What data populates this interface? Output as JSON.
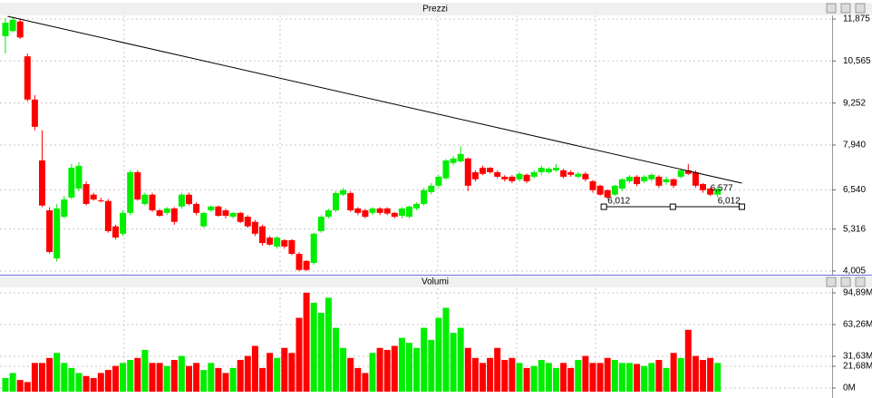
{
  "chart_data": {
    "type": "candlestick",
    "price_title": "Prezzi",
    "volume_title": "Volumi",
    "up_color": "#00ee00",
    "down_color": "#ff0000",
    "line_color": "#000000",
    "grid": true,
    "open": [
      11.34,
      11.5,
      11.8,
      10.71,
      9.36,
      7.46,
      5.9,
      4.4,
      5.7,
      6.3,
      6.58,
      6.72,
      6.39,
      6.21,
      6.19,
      5.4,
      5.17,
      5.82,
      7.09,
      6.1,
      6.39,
      5.9,
      5.82,
      5.96,
      6.02,
      6.39,
      6.1,
      5.4,
      5.9,
      6.02,
      5.9,
      5.7,
      5.82,
      5.7,
      5.54,
      5.4,
      5.05,
      4.77,
      4.97,
      4.97,
      4.54,
      4.32,
      4.26,
      5.25,
      5.7,
      5.9,
      6.39,
      6.44,
      5.96,
      5.9,
      5.82,
      5.96,
      5.96,
      5.82,
      5.73,
      5.7,
      5.96,
      6.1,
      6.47,
      6.67,
      6.9,
      7.38,
      7.43,
      7.52,
      7.09,
      7.23,
      7.23,
      7.09,
      6.95,
      6.95,
      6.87,
      7.01,
      6.95,
      7.09,
      7.09,
      7.15,
      7.15,
      7.09,
      6.95,
      7.04,
      6.81,
      6.67,
      6.53,
      6.39,
      6.58,
      6.81,
      6.95,
      6.81,
      6.87,
      6.95,
      6.78,
      6.87,
      6.95,
      7.15,
      7.09,
      6.72,
      6.58,
      6.39
    ],
    "high": [
      11.9,
      11.95,
      11.9,
      10.8,
      9.5,
      8.4,
      6.0,
      6.1,
      6.35,
      7.35,
      7.4,
      6.8,
      6.45,
      6.3,
      6.25,
      5.45,
      5.9,
      7.15,
      7.15,
      6.45,
      6.45,
      5.95,
      6.0,
      6.0,
      6.45,
      6.45,
      6.15,
      5.85,
      6.05,
      6.05,
      5.95,
      5.85,
      5.85,
      5.75,
      5.6,
      5.45,
      5.1,
      5.1,
      5.0,
      5.0,
      4.6,
      4.35,
      5.2,
      5.75,
      5.95,
      6.5,
      6.6,
      6.5,
      6.0,
      5.95,
      6.0,
      6.0,
      6.0,
      5.85,
      6.0,
      6.05,
      6.15,
      6.6,
      6.75,
      7.0,
      7.5,
      7.6,
      7.9,
      7.55,
      7.15,
      7.3,
      7.25,
      7.15,
      7.0,
      7.0,
      7.1,
      7.05,
      7.15,
      7.3,
      7.25,
      7.35,
      7.2,
      7.15,
      7.1,
      7.1,
      6.85,
      6.7,
      6.55,
      6.7,
      6.9,
      7.0,
      7.0,
      7.0,
      7.05,
      7.0,
      6.95,
      6.9,
      7.2,
      7.35,
      7.15,
      6.75,
      6.6,
      6.65
    ],
    "low": [
      10.8,
      11.45,
      11.25,
      9.3,
      8.4,
      6.0,
      4.55,
      4.3,
      5.65,
      6.25,
      6.5,
      6.05,
      6.2,
      6.15,
      5.2,
      5.0,
      5.1,
      5.75,
      6.2,
      6.05,
      5.85,
      5.7,
      5.75,
      5.45,
      5.95,
      6.05,
      5.75,
      5.35,
      5.85,
      5.7,
      5.65,
      5.65,
      5.5,
      5.35,
      5.1,
      4.8,
      4.8,
      4.7,
      4.7,
      4.5,
      4.0,
      4.0,
      4.2,
      5.2,
      5.65,
      5.85,
      6.35,
      5.85,
      5.75,
      5.65,
      5.75,
      5.75,
      5.75,
      5.65,
      5.65,
      5.65,
      5.9,
      6.05,
      6.4,
      6.6,
      6.85,
      7.3,
      7.4,
      6.5,
      6.8,
      7.0,
      7.05,
      6.9,
      6.8,
      6.75,
      6.8,
      6.75,
      6.9,
      7.0,
      7.05,
      7.1,
      6.9,
      6.95,
      6.9,
      6.8,
      6.45,
      6.35,
      6.25,
      6.35,
      6.5,
      6.75,
      6.65,
      6.75,
      6.8,
      6.6,
      6.7,
      6.6,
      6.9,
      7.0,
      6.6,
      6.45,
      6.35,
      6.3
    ],
    "close": [
      11.76,
      11.85,
      11.3,
      9.36,
      8.51,
      6.05,
      4.6,
      5.96,
      6.24,
      7.23,
      7.29,
      6.1,
      6.24,
      6.19,
      5.25,
      5.05,
      5.82,
      7.09,
      6.24,
      6.39,
      5.9,
      5.73,
      5.96,
      5.54,
      6.39,
      6.1,
      5.82,
      5.82,
      6.02,
      5.73,
      5.73,
      5.82,
      5.54,
      5.4,
      5.17,
      4.88,
      4.83,
      5.05,
      4.77,
      4.54,
      4.04,
      4.04,
      5.17,
      5.7,
      5.9,
      6.44,
      6.53,
      5.9,
      5.82,
      5.7,
      5.96,
      5.82,
      5.8,
      5.7,
      5.96,
      6.02,
      6.1,
      6.53,
      6.67,
      6.95,
      7.46,
      7.52,
      7.66,
      6.67,
      6.87,
      7.04,
      7.09,
      6.95,
      6.87,
      6.81,
      7.04,
      6.81,
      7.09,
      7.23,
      7.2,
      7.23,
      6.95,
      7.01,
      7.04,
      6.87,
      6.53,
      6.39,
      6.3,
      6.67,
      6.87,
      6.95,
      6.72,
      6.95,
      7.01,
      6.67,
      6.87,
      6.67,
      7.15,
      7.04,
      6.67,
      6.53,
      6.39,
      6.58
    ],
    "volume": [
      10,
      15,
      8,
      6,
      25,
      25,
      30,
      35,
      25,
      20,
      15,
      12,
      10,
      15,
      18,
      22,
      25,
      28,
      30,
      38,
      25,
      25,
      22,
      28,
      32,
      22,
      25,
      18,
      25,
      20,
      15,
      20,
      28,
      32,
      42,
      20,
      35,
      30,
      40,
      35,
      70,
      95,
      85,
      75,
      90,
      60,
      40,
      30,
      20,
      15,
      35,
      40,
      38,
      42,
      50,
      45,
      40,
      60,
      48,
      70,
      80,
      55,
      60,
      40,
      30,
      25,
      30,
      40,
      28,
      30,
      25,
      20,
      22,
      28,
      25,
      20,
      25,
      20,
      28,
      32,
      25,
      25,
      30,
      28,
      25,
      25,
      24,
      22,
      25,
      28,
      20,
      35,
      30,
      58,
      32,
      28,
      30,
      25
    ],
    "ylim": [
      3.89,
      11.96
    ],
    "yticks": [
      {
        "value": 11.875,
        "label": "11,875"
      },
      {
        "value": 10.565,
        "label": "10,565"
      },
      {
        "value": 9.252,
        "label": "9,252"
      },
      {
        "value": 7.94,
        "label": "7,940"
      },
      {
        "value": 6.54,
        "label": "6,540"
      },
      {
        "value": 5.316,
        "label": "5,316"
      },
      {
        "value": 4.005,
        "label": "4,005"
      }
    ],
    "y2lim": [
      -3.6,
      99.4
    ],
    "y2ticks": [
      {
        "value": 94.89,
        "label": "94,89M"
      },
      {
        "value": 63.26,
        "label": "63,26M"
      },
      {
        "value": 31.63,
        "label": "31,63M"
      },
      {
        "value": 21.68,
        "label": "21,68M"
      },
      {
        "value": 0,
        "label": "0M"
      }
    ],
    "trendline": {
      "start": [
        0.3,
        11.96
      ],
      "end": [
        100.3,
        6.75
      ]
    },
    "level": {
      "value": 6.012,
      "from": 81.5,
      "to": 100.3
    },
    "price_labels": [
      {
        "value": 6.577,
        "label": "6,577",
        "at": 96
      },
      {
        "value": 6.012,
        "label": "6,012",
        "at": 82
      },
      {
        "value": 6.012,
        "label": "6,012",
        "at": 97
      }
    ]
  }
}
